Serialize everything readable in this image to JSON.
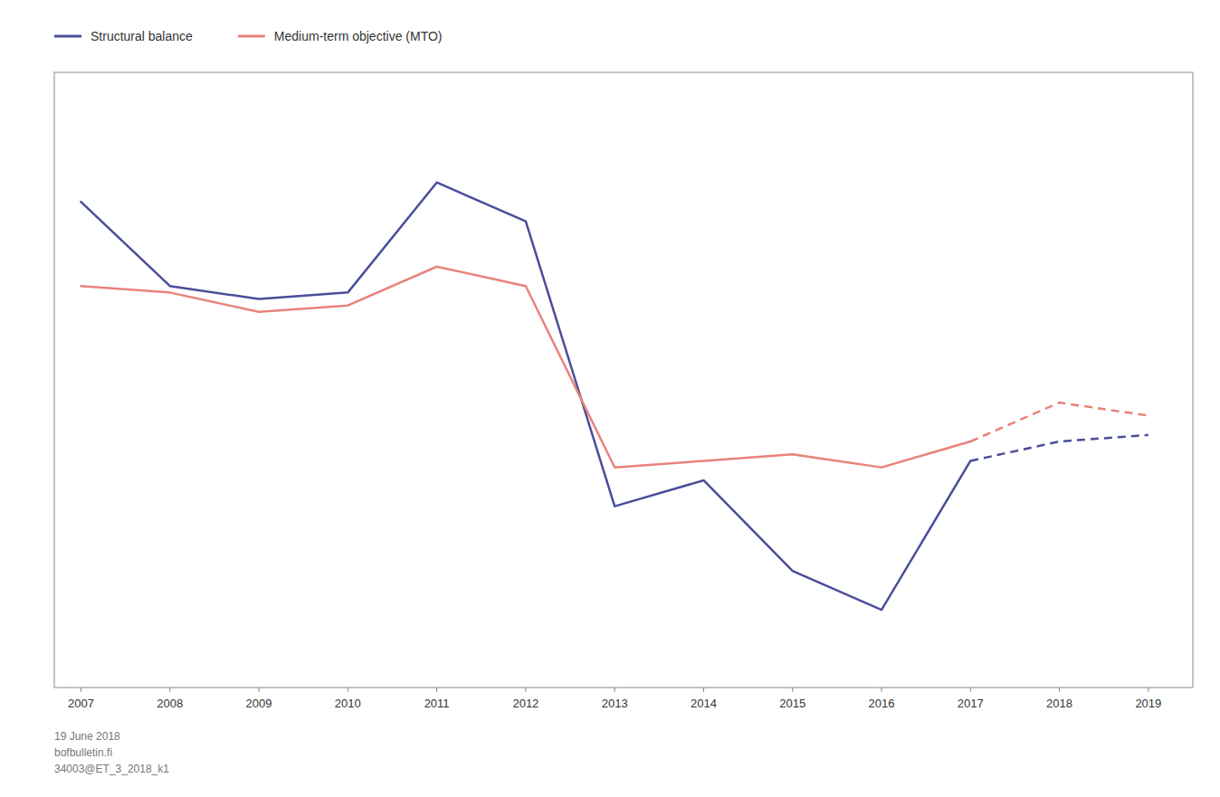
{
  "chart_data": {
    "type": "line",
    "x": [
      2007,
      2008,
      2009,
      2010,
      2011,
      2012,
      2013,
      2014,
      2015,
      2016,
      2017,
      2018,
      2019
    ],
    "xlim": [
      2006.7,
      2019.5
    ],
    "xticks": [
      2007,
      2008,
      2009,
      2010,
      2011,
      2012,
      2013,
      2014,
      2015,
      2016,
      2017,
      2018,
      2019
    ],
    "ylim": [
      -4.0,
      5.5
    ],
    "tick_labels": "x",
    "grid": false,
    "legend": "top-left",
    "annotations": [
      "19 June 2018",
      "bofbulletin.fi",
      "34003@ET_3_2018_k1"
    ],
    "series": [
      {
        "name": "Structural balance",
        "color": "#4a4e9a",
        "line_style": "solid",
        "values": [
          3.5,
          2.2,
          2.0,
          2.1,
          3.8,
          3.2,
          -1.2,
          -0.8,
          -2.2,
          -2.8,
          -0.5,
          null,
          null
        ]
      },
      {
        "color": "#4a4e9a",
        "line_style": "dashed",
        "values": [
          null,
          null,
          null,
          null,
          null,
          null,
          null,
          null,
          null,
          null,
          -0.5,
          -0.2,
          -0.1
        ]
      },
      {
        "name": "Medium-term objective (MTO)",
        "color": "#e8837a",
        "line_style": "solid",
        "values": [
          2.2,
          2.1,
          1.8,
          1.9,
          2.5,
          2.2,
          -0.6,
          -0.5,
          -0.4,
          -0.6,
          -0.2,
          null,
          null
        ]
      },
      {
        "color": "#e8837a",
        "line_style": "dashed",
        "values": [
          null,
          null,
          null,
          null,
          null,
          null,
          null,
          null,
          null,
          null,
          -0.2,
          0.4,
          0.2
        ]
      }
    ]
  }
}
